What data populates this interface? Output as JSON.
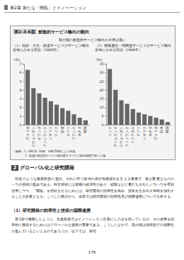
{
  "header": {
    "chapter": "第2章",
    "title": "新たな「開拓」とイノベーション"
  },
  "figure": {
    "number": "第2-3-6図",
    "title": "創造的サービス輸出の動向",
    "subtitle": "我が国の創造的サービス輸出の水準は低い",
    "notes": [
      "（備考）1. OECD. Stat、UNCTADにより作成。",
      "2. 各国の創造的サービス輸出額をサービス輸出総額で除した値。"
    ]
  },
  "chart_data": [
    {
      "type": "bar",
      "title": "（1）知財・文化・娯楽サービスがサービス輸出全体に占める割合（2008年）",
      "ylabel": "(%)",
      "categories": [
        "アメリカ",
        "スウェーデン",
        "オランダ",
        "フィンランド",
        "イギリス",
        "スイス",
        "日本",
        "ドイツ",
        "フランス",
        "カナダ",
        "韓国"
      ],
      "values": [
        6.3,
        4.2,
        3.6,
        3.1,
        2.7,
        2.3,
        1.9,
        1.6,
        1.2,
        0.8,
        0.5
      ],
      "color": "#666666",
      "ylim": [
        0,
        7
      ],
      "yticks": [
        0,
        1,
        2,
        3,
        4,
        5,
        6,
        7
      ],
      "grid": false
    },
    {
      "type": "bar",
      "title": "（2）情報通信・同関連サービスがサービス輸出全体に占める割合（2008年）",
      "ylabel": "(%)",
      "categories": [
        "インド",
        "アイルランド",
        "スウェーデン",
        "フィンランド",
        "イスラエル",
        "ドイツ",
        "イギリス",
        "カナダ",
        "アメリカ",
        "日本",
        "韓国"
      ],
      "values": [
        32,
        20,
        14,
        12,
        9,
        7,
        6,
        5,
        4,
        3,
        1.5
      ],
      "color": "#666666",
      "ylim": [
        0,
        35
      ],
      "yticks": [
        0,
        5,
        10,
        15,
        20,
        25,
        30,
        35
      ],
      "grid": false
    }
  ],
  "section": {
    "number": "2",
    "title": "グローバル化と研究開発",
    "paragraphs": [
      "前述のような貿易構造の進化、それに伴う国内の高付加価値化を支える要素で、最も重要なものの一つが技術の進歩である。科学技術には規模の経済性があり、経験などに裏打ちされたノウハウを有効活用しつつ、「開拓」を持続させるためには、研究開発の効率性を高め、技術を生み出す体制を強化することが必要となる。こうした観点から、本節では研究開発の効率性及び国際連携について分析する。"
    ],
    "subsection": {
      "title": "（1）研究開発の効率性と技術の国際連携",
      "paragraphs": [
        "第1節で概観したように、先進各国ではイノベーション活動にしのぎを削っているが、その成果を効率的に獲得するためにはグローバルな連携が重要である。こうしたなかで、我が国は技術面での国際化が進んでいるといえるのであろうか。以下では、研究"
      ]
    }
  },
  "page_number": "176"
}
